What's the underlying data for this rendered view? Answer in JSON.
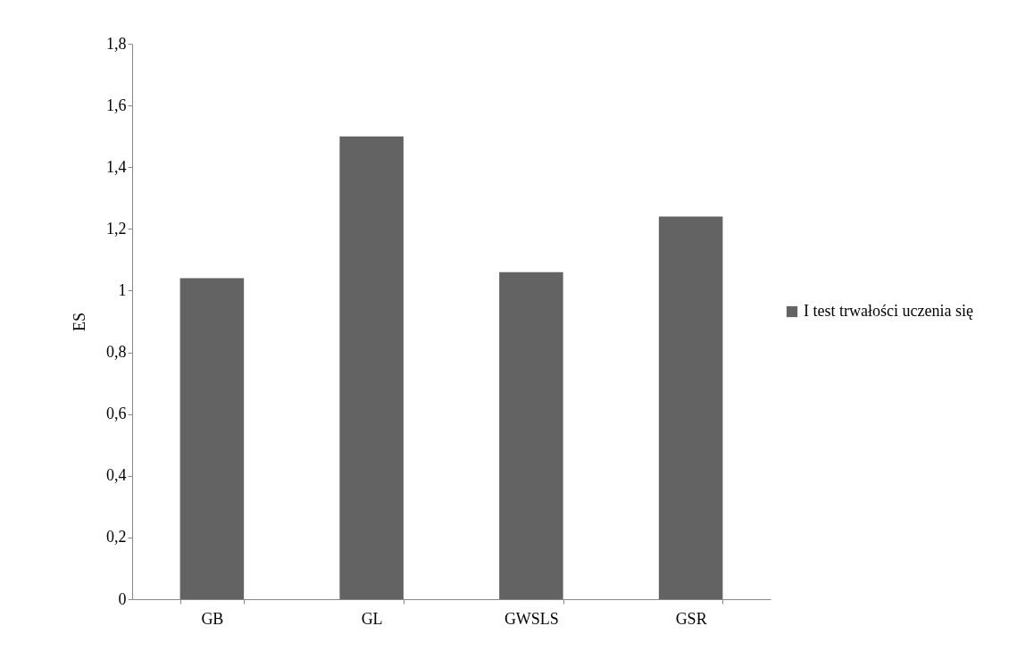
{
  "chart_data": {
    "type": "bar",
    "ylabel": "ES",
    "categories": [
      "GB",
      "GL",
      "GWSLS",
      "GSR"
    ],
    "series": [
      {
        "name": "I test trwałości uczenia się",
        "color": "#636363",
        "values": [
          1.04,
          1.5,
          1.06,
          1.24
        ]
      }
    ],
    "ylim": [
      0,
      1.8
    ],
    "yticks": [
      0,
      {
        "value": 0.2,
        "label": "0,2"
      },
      {
        "value": 0.4,
        "label": "0,4"
      },
      {
        "value": 0.6,
        "label": "0,6"
      },
      {
        "value": 0.8,
        "label": "0,8"
      },
      1,
      {
        "value": 1.2,
        "label": "1,2"
      },
      {
        "value": 1.4,
        "label": "1,4"
      },
      {
        "value": 1.6,
        "label": "1,6"
      },
      {
        "value": 1.8,
        "label": "1,8"
      }
    ],
    "grid": false,
    "legend": "right"
  }
}
